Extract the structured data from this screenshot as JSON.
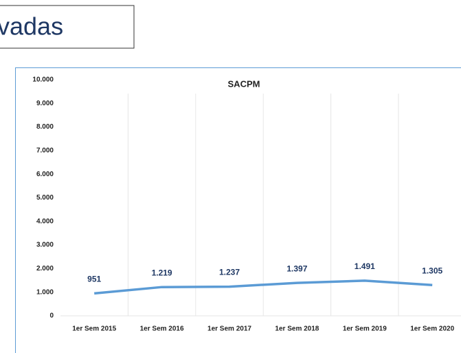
{
  "header": {
    "title": "vadas"
  },
  "chart_data": {
    "type": "line",
    "title": "SACPM",
    "categories": [
      "1er Sem 2015",
      "1er Sem 2016",
      "1er Sem 2017",
      "1er Sem 2018",
      "1er Sem 2019",
      "1er Sem 2020"
    ],
    "series": [
      {
        "name": "SACPM",
        "color": "#5b9bd5",
        "values": [
          951,
          1219,
          1237,
          1397,
          1491,
          1305
        ],
        "value_labels": [
          "951",
          "1.219",
          "1.237",
          "1.397",
          "1.491",
          "1.305"
        ]
      }
    ],
    "ylim": [
      0,
      10000
    ],
    "yticks": [
      0,
      {
        "value": 1000,
        "label": "1.000"
      },
      {
        "value": 2000,
        "label": "2.000"
      },
      {
        "value": 3000,
        "label": "3.000"
      },
      {
        "value": 4000,
        "label": "4.000"
      },
      {
        "value": 5000,
        "label": "5.000"
      },
      {
        "value": 6000,
        "label": "6.000"
      },
      {
        "value": 7000,
        "label": "7.000"
      },
      {
        "value": 8000,
        "label": "8.000"
      },
      {
        "value": 9000,
        "label": "9.000"
      },
      {
        "value": 10000,
        "label": "10.000"
      }
    ],
    "grid": true
  }
}
